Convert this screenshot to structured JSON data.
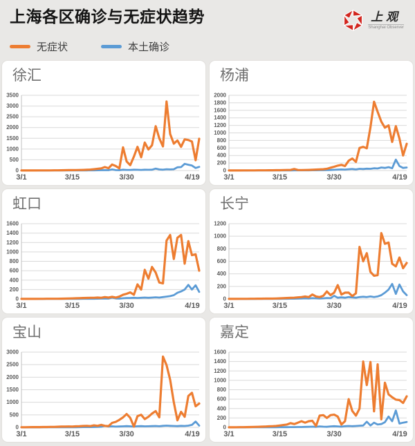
{
  "header": {
    "title": "上海各区确诊与无症状趋势",
    "legend": [
      {
        "label": "无症状",
        "color": "#ED7D31"
      },
      {
        "label": "本土确诊",
        "color": "#5B9BD5"
      }
    ],
    "logo": {
      "cn": "上观",
      "en": "Shanghai Observer",
      "color": "#d2261f"
    }
  },
  "x_axis": {
    "start": "3/1",
    "end": "4/19",
    "n_points": 50,
    "ticks": [
      {
        "label": "3/1",
        "day": 0
      },
      {
        "label": "3/15",
        "day": 14
      },
      {
        "label": "3/30",
        "day": 29
      },
      {
        "label": "4/19",
        "day": 49
      }
    ]
  },
  "chart_data": [
    {
      "type": "line",
      "title": "徐汇",
      "ylim": [
        0,
        3500
      ],
      "y_step": 500,
      "series": [
        {
          "name": "无症状",
          "color": "#ED7D31",
          "values": [
            2,
            2,
            3,
            3,
            4,
            5,
            5,
            6,
            8,
            10,
            10,
            12,
            15,
            18,
            20,
            22,
            25,
            30,
            35,
            45,
            60,
            80,
            100,
            160,
            110,
            280,
            210,
            100,
            1080,
            420,
            250,
            650,
            1100,
            620,
            1300,
            980,
            1180,
            2060,
            1500,
            1120,
            3210,
            1700,
            1250,
            1400,
            1100,
            1450,
            1420,
            1350,
            480,
            1480
          ]
        },
        {
          "name": "本土确诊",
          "color": "#5B9BD5",
          "values": [
            0,
            0,
            0,
            0,
            0,
            1,
            1,
            1,
            2,
            2,
            2,
            3,
            3,
            4,
            5,
            5,
            6,
            8,
            8,
            10,
            10,
            12,
            15,
            20,
            15,
            50,
            20,
            15,
            40,
            30,
            30,
            40,
            35,
            30,
            40,
            35,
            40,
            90,
            50,
            40,
            60,
            50,
            60,
            150,
            160,
            310,
            270,
            230,
            120,
            170
          ]
        }
      ]
    },
    {
      "type": "line",
      "title": "杨浦",
      "ylim": [
        0,
        2000
      ],
      "y_step": 200,
      "series": [
        {
          "name": "无症状",
          "color": "#ED7D31",
          "values": [
            1,
            1,
            2,
            2,
            3,
            3,
            4,
            4,
            5,
            5,
            6,
            7,
            8,
            9,
            10,
            12,
            14,
            16,
            40,
            15,
            12,
            14,
            16,
            20,
            25,
            30,
            35,
            45,
            75,
            100,
            130,
            150,
            120,
            260,
            320,
            230,
            600,
            630,
            590,
            1150,
            1830,
            1560,
            1300,
            1140,
            1200,
            760,
            1180,
            850,
            400,
            710
          ]
        },
        {
          "name": "本土确诊",
          "color": "#5B9BD5",
          "values": [
            0,
            0,
            0,
            0,
            0,
            0,
            1,
            1,
            1,
            1,
            1,
            2,
            2,
            2,
            3,
            3,
            4,
            4,
            5,
            5,
            5,
            6,
            6,
            8,
            8,
            10,
            10,
            12,
            15,
            20,
            25,
            30,
            25,
            35,
            40,
            30,
            45,
            40,
            50,
            45,
            60,
            55,
            80,
            70,
            90,
            60,
            290,
            120,
            70,
            80
          ]
        }
      ]
    },
    {
      "type": "line",
      "title": "虹口",
      "ylim": [
        0,
        1600
      ],
      "y_step": 200,
      "series": [
        {
          "name": "无症状",
          "color": "#ED7D31",
          "values": [
            1,
            1,
            1,
            2,
            2,
            3,
            3,
            4,
            4,
            5,
            5,
            6,
            8,
            10,
            12,
            15,
            18,
            20,
            22,
            25,
            25,
            30,
            25,
            40,
            30,
            45,
            30,
            50,
            90,
            110,
            140,
            90,
            310,
            200,
            620,
            430,
            680,
            560,
            350,
            330,
            1240,
            1360,
            850,
            1300,
            1360,
            750,
            1230,
            930,
            950,
            600
          ]
        },
        {
          "name": "本土确诊",
          "color": "#5B9BD5",
          "values": [
            0,
            0,
            0,
            0,
            0,
            0,
            0,
            1,
            1,
            1,
            1,
            1,
            2,
            2,
            2,
            3,
            3,
            4,
            4,
            5,
            5,
            6,
            8,
            10,
            8,
            30,
            10,
            8,
            15,
            20,
            20,
            25,
            20,
            25,
            30,
            25,
            30,
            35,
            30,
            40,
            50,
            60,
            80,
            130,
            160,
            200,
            300,
            200,
            290,
            150
          ]
        }
      ]
    },
    {
      "type": "line",
      "title": "长宁",
      "ylim": [
        0,
        1200
      ],
      "y_step": 200,
      "series": [
        {
          "name": "无症状",
          "color": "#ED7D31",
          "values": [
            1,
            1,
            1,
            2,
            2,
            2,
            3,
            3,
            4,
            4,
            5,
            5,
            6,
            8,
            10,
            12,
            15,
            18,
            20,
            25,
            30,
            40,
            30,
            70,
            40,
            30,
            50,
            120,
            60,
            100,
            220,
            70,
            100,
            100,
            45,
            90,
            830,
            600,
            730,
            430,
            370,
            380,
            1050,
            880,
            900,
            560,
            520,
            660,
            490,
            575
          ]
        },
        {
          "name": "本土确诊",
          "color": "#5B9BD5",
          "values": [
            0,
            0,
            0,
            0,
            0,
            0,
            0,
            0,
            1,
            1,
            1,
            1,
            2,
            2,
            2,
            3,
            3,
            4,
            4,
            5,
            8,
            10,
            8,
            12,
            10,
            8,
            10,
            15,
            12,
            50,
            20,
            25,
            20,
            30,
            25,
            20,
            30,
            35,
            30,
            40,
            30,
            40,
            60,
            100,
            150,
            240,
            80,
            230,
            120,
            60
          ]
        }
      ]
    },
    {
      "type": "line",
      "title": "宝山",
      "ylim": [
        0,
        3000
      ],
      "y_step": 500,
      "series": [
        {
          "name": "无症状",
          "color": "#ED7D31",
          "values": [
            5,
            5,
            8,
            10,
            10,
            12,
            15,
            15,
            20,
            20,
            25,
            30,
            30,
            35,
            30,
            40,
            45,
            55,
            60,
            50,
            80,
            60,
            100,
            60,
            50,
            180,
            220,
            300,
            400,
            530,
            380,
            30,
            450,
            500,
            330,
            420,
            550,
            650,
            400,
            2820,
            2480,
            1900,
            1000,
            280,
            620,
            420,
            1250,
            1380,
            840,
            950
          ]
        },
        {
          "name": "本土确诊",
          "color": "#5B9BD5",
          "values": [
            0,
            0,
            0,
            1,
            1,
            1,
            2,
            2,
            2,
            3,
            3,
            4,
            4,
            5,
            5,
            6,
            8,
            10,
            12,
            10,
            15,
            20,
            25,
            60,
            30,
            40,
            30,
            35,
            40,
            50,
            40,
            30,
            45,
            50,
            40,
            45,
            50,
            55,
            45,
            60,
            70,
            60,
            55,
            50,
            60,
            55,
            70,
            100,
            230,
            70
          ]
        }
      ]
    },
    {
      "type": "line",
      "title": "嘉定",
      "ylim": [
        0,
        1600
      ],
      "y_step": 200,
      "series": [
        {
          "name": "无症状",
          "color": "#ED7D31",
          "values": [
            2,
            2,
            3,
            4,
            5,
            6,
            8,
            10,
            12,
            15,
            18,
            22,
            25,
            30,
            40,
            50,
            60,
            90,
            70,
            100,
            130,
            100,
            130,
            140,
            30,
            250,
            260,
            200,
            260,
            270,
            230,
            60,
            130,
            600,
            350,
            250,
            400,
            1400,
            900,
            1390,
            340,
            1340,
            170,
            950,
            700,
            640,
            590,
            580,
            520,
            660
          ]
        },
        {
          "name": "本土确诊",
          "color": "#5B9BD5",
          "values": [
            0,
            0,
            0,
            0,
            0,
            1,
            1,
            1,
            1,
            2,
            2,
            2,
            3,
            3,
            4,
            4,
            5,
            6,
            6,
            8,
            8,
            10,
            12,
            15,
            10,
            20,
            15,
            12,
            20,
            25,
            20,
            15,
            25,
            30,
            25,
            30,
            35,
            40,
            120,
            40,
            100,
            60,
            70,
            110,
            230,
            130,
            360,
            80,
            100,
            115
          ]
        }
      ]
    }
  ]
}
